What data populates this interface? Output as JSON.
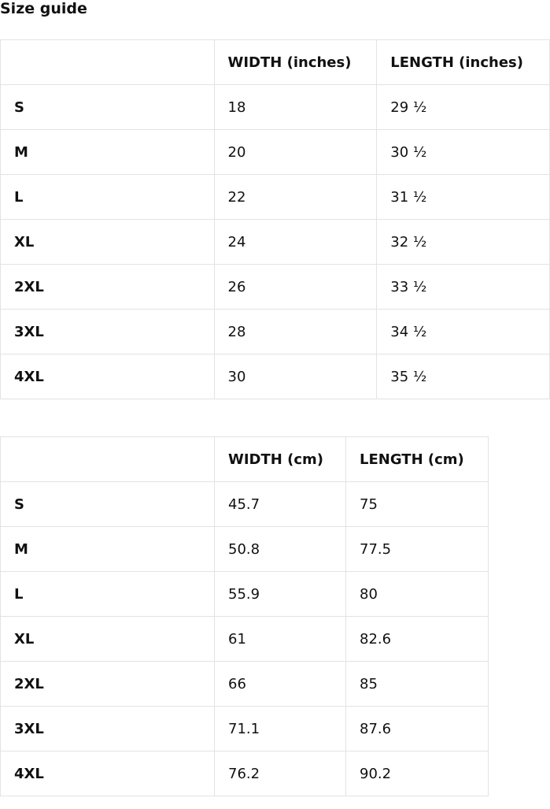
{
  "title": "Size guide",
  "inches_table": {
    "headers": [
      "",
      "WIDTH (inches)",
      "LENGTH (inches)"
    ],
    "rows": [
      [
        "S",
        "18",
        "29 ½"
      ],
      [
        "M",
        "20",
        "30 ½"
      ],
      [
        "L",
        "22",
        "31 ½"
      ],
      [
        "XL",
        "24",
        "32 ½"
      ],
      [
        "2XL",
        "26",
        "33 ½"
      ],
      [
        "3XL",
        "28",
        "34 ½"
      ],
      [
        "4XL",
        "30",
        "35 ½"
      ]
    ]
  },
  "cm_table": {
    "headers": [
      "",
      "WIDTH (cm)",
      "LENGTH (cm)"
    ],
    "rows": [
      [
        "S",
        "45.7",
        "75"
      ],
      [
        "M",
        "50.8",
        "77.5"
      ],
      [
        "L",
        "55.9",
        "80"
      ],
      [
        "XL",
        "61",
        "82.6"
      ],
      [
        "2XL",
        "66",
        "85"
      ],
      [
        "3XL",
        "71.1",
        "87.6"
      ],
      [
        "4XL",
        "76.2",
        "90.2"
      ]
    ]
  }
}
